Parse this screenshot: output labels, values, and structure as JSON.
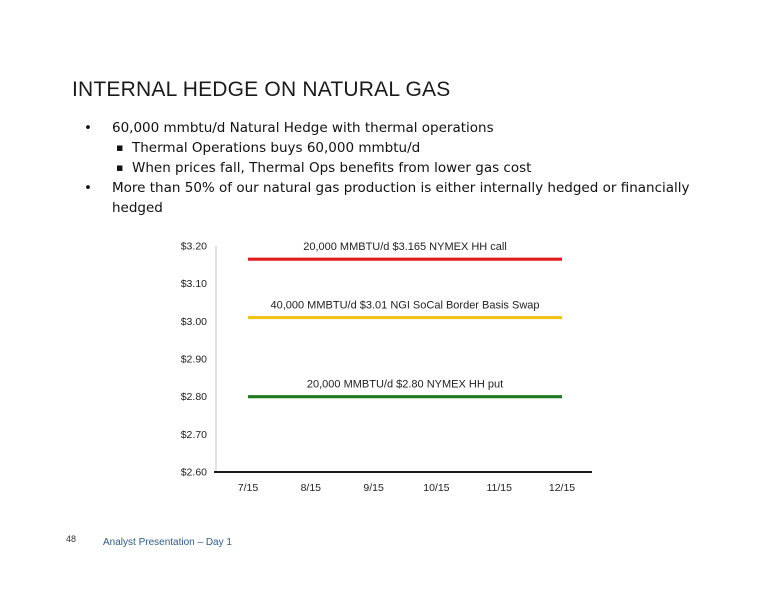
{
  "slide": {
    "title": "INTERNAL HEDGE ON NATURAL GAS",
    "bullets": [
      {
        "marker": "•",
        "text": "60,000 mmbtu/d Natural Hedge with thermal operations",
        "sub": [
          {
            "marker": "▪",
            "text": "Thermal Operations buys 60,000 mmbtu/d"
          },
          {
            "marker": "▪",
            "text": "When prices fall, Thermal Ops benefits from lower gas cost"
          }
        ]
      },
      {
        "marker": "•",
        "text": "More than 50% of our natural gas production is either internally hedged or financially hedged",
        "sub": []
      }
    ],
    "page_number": "48",
    "footer": "Analyst Presentation – Day 1"
  },
  "chart_data": {
    "type": "line",
    "title": "",
    "xlabel": "",
    "ylabel": "",
    "categories": [
      "7/15",
      "8/15",
      "9/15",
      "10/15",
      "11/15",
      "12/15"
    ],
    "ylim": [
      2.6,
      3.2
    ],
    "yticks": [
      "$2.60",
      "$2.70",
      "$2.80",
      "$2.90",
      "$3.00",
      "$3.10",
      "$3.20"
    ],
    "ytick_values": [
      2.6,
      2.7,
      2.8,
      2.9,
      3.0,
      3.1,
      3.2
    ],
    "grid": false,
    "series": [
      {
        "label": "20,000 MMBTU/d $3.165 NYMEX HH call",
        "values": [
          3.165,
          3.165,
          3.165,
          3.165,
          3.165,
          3.165
        ],
        "color": "#e01b1b"
      },
      {
        "label": "40,000 MMBTU/d $3.01 NGI SoCal Border Basis Swap",
        "values": [
          3.01,
          3.01,
          3.01,
          3.01,
          3.01,
          3.01
        ],
        "color": "#f2c318"
      },
      {
        "label": "20,000 MMBTU/d $2.80 NYMEX HH put",
        "values": [
          2.8,
          2.8,
          2.8,
          2.8,
          2.8,
          2.8
        ],
        "color": "#1e7a1e"
      }
    ]
  }
}
